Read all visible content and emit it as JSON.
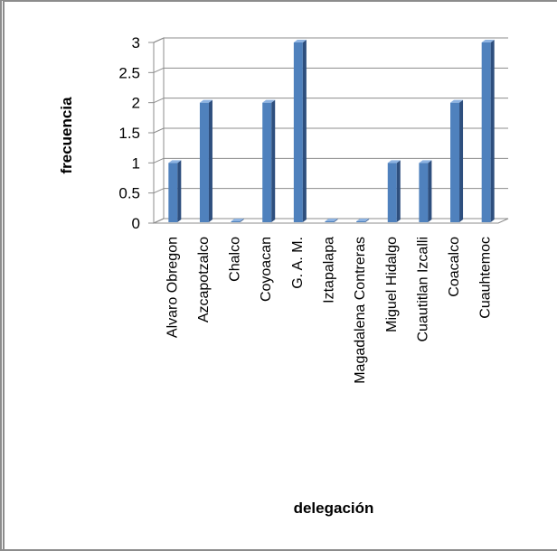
{
  "chart_data": {
    "type": "bar",
    "title": "",
    "xlabel": "delegación",
    "ylabel": "frecuencia",
    "ylim": [
      0,
      3
    ],
    "yticks": [
      "0",
      "0.5",
      "1",
      "1.5",
      "2",
      "2.5",
      "3"
    ],
    "grid": true,
    "legend": "none",
    "bar_color": "#4f81bd",
    "categories": [
      "Alvaro Obregon",
      "Azcapotzalco",
      "Chalco",
      "Coyoacan",
      "G. A. M.",
      "Iztapalapa",
      "Magadalena Contreras",
      "Miguel Hidalgo",
      "Cuautitlan Izcalli",
      "Coacalco",
      "Cuauhtemoc"
    ],
    "values": [
      1,
      2,
      0,
      2,
      3,
      0,
      0,
      1,
      1,
      2,
      3
    ]
  }
}
